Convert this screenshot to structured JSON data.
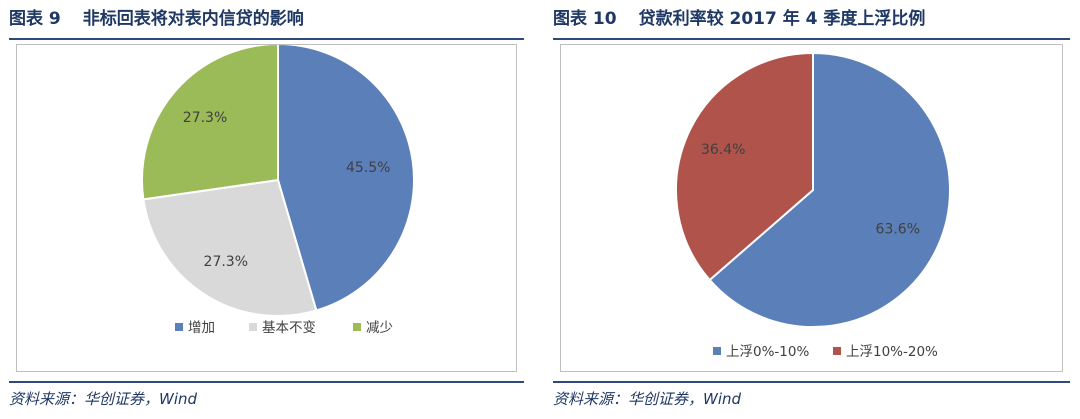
{
  "figures": [
    {
      "number": "图表 9",
      "title": "非标回表将对表内信贷的影响",
      "source": "资料来源：华创证券，Wind"
    },
    {
      "number": "图表 10",
      "title": "贷款利率较 2017 年 4 季度上浮比例",
      "source": "资料来源：华创证券，Wind"
    }
  ],
  "chart_data": [
    {
      "type": "pie",
      "categories": [
        "增加",
        "基本不变",
        "减少"
      ],
      "values": [
        45.5,
        27.3,
        27.3
      ],
      "labels": [
        "45.5%",
        "27.3%",
        "27.3%"
      ],
      "colors": [
        "#5b7fb9",
        "#d9d9d9",
        "#9bbb59"
      ],
      "start_angle_deg": 0,
      "direction": "clockwise",
      "legend_position": "bottom"
    },
    {
      "type": "pie",
      "categories": [
        "上浮0%-10%",
        "上浮10%-20%"
      ],
      "values": [
        63.6,
        36.4
      ],
      "labels": [
        "63.6%",
        "36.4%"
      ],
      "colors": [
        "#5b7fb9",
        "#b0534b"
      ],
      "start_angle_deg": 0,
      "direction": "clockwise",
      "legend_position": "bottom"
    }
  ]
}
